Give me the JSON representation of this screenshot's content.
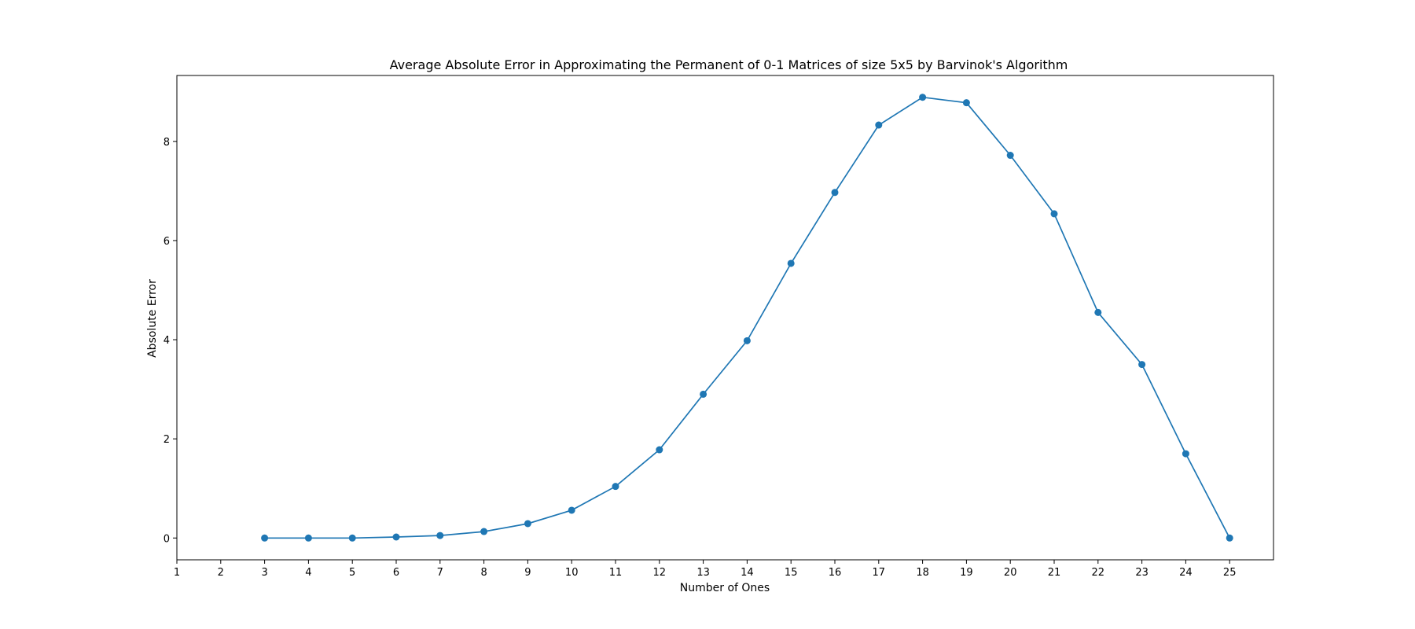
{
  "chart_data": {
    "type": "line",
    "title": "Average Absolute Error in Approximating the Permanent of 0-1 Matrices of size 5x5 by Barvinok's Algorithm",
    "xlabel": "Number of Ones",
    "ylabel": "Absolute Error",
    "xlim": [
      1,
      26
    ],
    "ylim": [
      -0.44,
      9.33
    ],
    "x_ticks": [
      1,
      2,
      3,
      4,
      5,
      6,
      7,
      8,
      9,
      10,
      11,
      12,
      13,
      14,
      15,
      16,
      17,
      18,
      19,
      20,
      21,
      22,
      23,
      24,
      25
    ],
    "y_ticks": [
      0,
      2,
      4,
      6,
      8
    ],
    "grid": false,
    "series": [
      {
        "color": "#1f77b4",
        "marker": "circle",
        "x": [
          3,
          4,
          5,
          6,
          7,
          8,
          9,
          10,
          11,
          12,
          13,
          14,
          15,
          16,
          17,
          18,
          19,
          20,
          21,
          22,
          23,
          24,
          25
        ],
        "y": [
          0.0,
          0.0,
          0.0,
          0.02,
          0.05,
          0.13,
          0.29,
          0.56,
          1.04,
          1.78,
          2.9,
          3.98,
          5.54,
          6.97,
          8.33,
          8.89,
          8.78,
          7.72,
          6.54,
          4.55,
          3.5,
          1.7,
          0.0
        ]
      }
    ]
  }
}
